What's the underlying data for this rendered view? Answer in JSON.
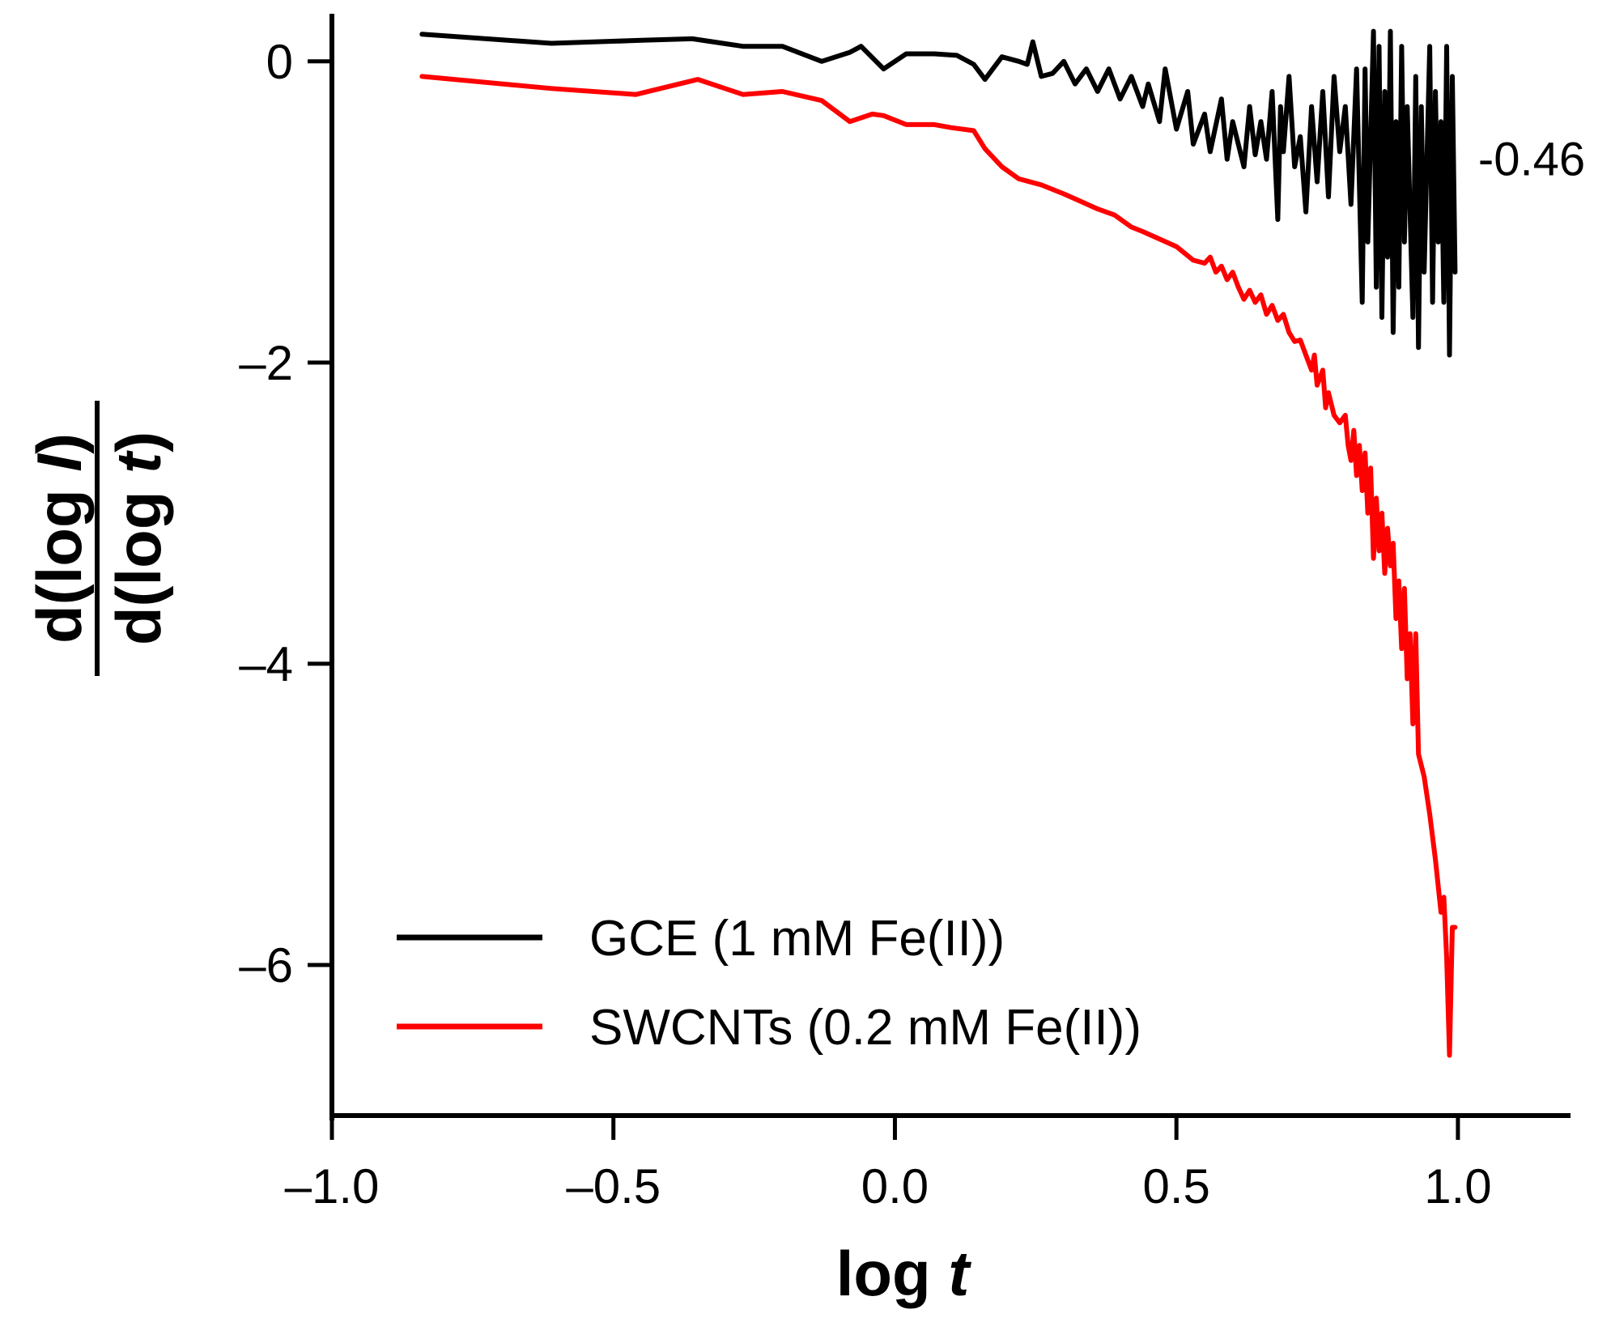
{
  "chart_data": {
    "type": "line",
    "xlabel": "log",
    "xlabel_italic": "t",
    "ylabel_num": "d(log ",
    "ylabel_num_italic": "I",
    "ylabel_num_end": ")",
    "ylabel_den": "d(log ",
    "ylabel_den_italic": "t",
    "ylabel_den_end": ")",
    "xlim": [
      -1.0,
      1.2
    ],
    "ylim": [
      -7.0,
      0.3
    ],
    "xticks": [
      -1.0,
      -0.5,
      0.0,
      0.5,
      1.0
    ],
    "xtick_labels": [
      "–1.0",
      "–0.5",
      "0.0",
      "0.5",
      "1.0"
    ],
    "yticks": [
      0,
      -2,
      -4,
      -6
    ],
    "ytick_labels": [
      "0",
      "–2",
      "–4",
      "–6"
    ],
    "grid": false,
    "legend_position": "bottom-left",
    "annotation": {
      "text": "-0.46",
      "x": 1.0,
      "y": -0.65
    },
    "series": [
      {
        "name": "GCE (1 mM Fe(II))",
        "color": "#000000",
        "points": [
          [
            -0.84,
            0.18
          ],
          [
            -0.61,
            0.12
          ],
          [
            -0.45,
            0.14
          ],
          [
            -0.36,
            0.15
          ],
          [
            -0.27,
            0.1
          ],
          [
            -0.2,
            0.1
          ],
          [
            -0.13,
            0.0
          ],
          [
            -0.08,
            0.06
          ],
          [
            -0.06,
            0.1
          ],
          [
            -0.02,
            -0.05
          ],
          [
            0.02,
            0.05
          ],
          [
            0.07,
            0.05
          ],
          [
            0.11,
            0.04
          ],
          [
            0.14,
            -0.02
          ],
          [
            0.16,
            -0.12
          ],
          [
            0.19,
            0.03
          ],
          [
            0.22,
            0.0
          ],
          [
            0.235,
            -0.02
          ],
          [
            0.245,
            0.13
          ],
          [
            0.26,
            -0.1
          ],
          [
            0.28,
            -0.08
          ],
          [
            0.3,
            0.0
          ],
          [
            0.32,
            -0.15
          ],
          [
            0.34,
            -0.05
          ],
          [
            0.36,
            -0.2
          ],
          [
            0.38,
            -0.05
          ],
          [
            0.4,
            -0.25
          ],
          [
            0.42,
            -0.1
          ],
          [
            0.44,
            -0.3
          ],
          [
            0.45,
            -0.15
          ],
          [
            0.47,
            -0.4
          ],
          [
            0.48,
            -0.05
          ],
          [
            0.5,
            -0.45
          ],
          [
            0.52,
            -0.2
          ],
          [
            0.53,
            -0.55
          ],
          [
            0.55,
            -0.35
          ],
          [
            0.56,
            -0.6
          ],
          [
            0.58,
            -0.25
          ],
          [
            0.59,
            -0.65
          ],
          [
            0.6,
            -0.4
          ],
          [
            0.62,
            -0.7
          ],
          [
            0.63,
            -0.3
          ],
          [
            0.64,
            -0.62
          ],
          [
            0.65,
            -0.4
          ],
          [
            0.66,
            -0.65
          ],
          [
            0.67,
            -0.2
          ],
          [
            0.68,
            -1.05
          ],
          [
            0.685,
            -0.3
          ],
          [
            0.69,
            -0.6
          ],
          [
            0.7,
            -0.1
          ],
          [
            0.71,
            -0.7
          ],
          [
            0.72,
            -0.5
          ],
          [
            0.73,
            -1.0
          ],
          [
            0.74,
            -0.3
          ],
          [
            0.75,
            -0.8
          ],
          [
            0.76,
            -0.2
          ],
          [
            0.77,
            -0.9
          ],
          [
            0.78,
            -0.1
          ],
          [
            0.79,
            -0.6
          ],
          [
            0.8,
            -0.3
          ],
          [
            0.81,
            -0.95
          ],
          [
            0.82,
            -0.05
          ],
          [
            0.83,
            -1.6
          ],
          [
            0.835,
            -0.05
          ],
          [
            0.84,
            -1.2
          ],
          [
            0.85,
            0.2
          ],
          [
            0.855,
            -1.5
          ],
          [
            0.86,
            0.1
          ],
          [
            0.865,
            -1.7
          ],
          [
            0.87,
            -0.2
          ],
          [
            0.875,
            -1.3
          ],
          [
            0.88,
            0.2
          ],
          [
            0.885,
            -1.8
          ],
          [
            0.89,
            -0.4
          ],
          [
            0.895,
            -1.5
          ],
          [
            0.9,
            0.1
          ],
          [
            0.905,
            -1.2
          ],
          [
            0.91,
            -0.3
          ],
          [
            0.92,
            -1.7
          ],
          [
            0.925,
            -0.1
          ],
          [
            0.93,
            -1.9
          ],
          [
            0.935,
            -0.3
          ],
          [
            0.94,
            -1.4
          ],
          [
            0.95,
            0.1
          ],
          [
            0.955,
            -1.6
          ],
          [
            0.96,
            -0.2
          ],
          [
            0.965,
            -1.2
          ],
          [
            0.97,
            -0.4
          ],
          [
            0.975,
            -1.6
          ],
          [
            0.98,
            0.1
          ],
          [
            0.985,
            -1.95
          ],
          [
            0.99,
            -0.1
          ],
          [
            0.995,
            -1.4
          ]
        ]
      },
      {
        "name": "SWCNTs (0.2 mM Fe(II))",
        "color": "#ff0000",
        "points": [
          [
            -0.84,
            -0.1
          ],
          [
            -0.61,
            -0.18
          ],
          [
            -0.46,
            -0.22
          ],
          [
            -0.35,
            -0.12
          ],
          [
            -0.27,
            -0.22
          ],
          [
            -0.2,
            -0.2
          ],
          [
            -0.13,
            -0.26
          ],
          [
            -0.08,
            -0.4
          ],
          [
            -0.04,
            -0.35
          ],
          [
            -0.02,
            -0.36
          ],
          [
            0.02,
            -0.42
          ],
          [
            0.07,
            -0.42
          ],
          [
            0.1,
            -0.44
          ],
          [
            0.14,
            -0.46
          ],
          [
            0.16,
            -0.58
          ],
          [
            0.19,
            -0.7
          ],
          [
            0.22,
            -0.78
          ],
          [
            0.26,
            -0.82
          ],
          [
            0.3,
            -0.88
          ],
          [
            0.33,
            -0.93
          ],
          [
            0.36,
            -0.98
          ],
          [
            0.39,
            -1.02
          ],
          [
            0.42,
            -1.1
          ],
          [
            0.44,
            -1.13
          ],
          [
            0.47,
            -1.18
          ],
          [
            0.5,
            -1.23
          ],
          [
            0.53,
            -1.32
          ],
          [
            0.55,
            -1.34
          ],
          [
            0.56,
            -1.3
          ],
          [
            0.57,
            -1.4
          ],
          [
            0.58,
            -1.36
          ],
          [
            0.59,
            -1.45
          ],
          [
            0.6,
            -1.4
          ],
          [
            0.61,
            -1.5
          ],
          [
            0.62,
            -1.58
          ],
          [
            0.63,
            -1.52
          ],
          [
            0.64,
            -1.6
          ],
          [
            0.65,
            -1.55
          ],
          [
            0.66,
            -1.68
          ],
          [
            0.67,
            -1.62
          ],
          [
            0.68,
            -1.72
          ],
          [
            0.69,
            -1.68
          ],
          [
            0.7,
            -1.8
          ],
          [
            0.71,
            -1.86
          ],
          [
            0.72,
            -1.85
          ],
          [
            0.73,
            -1.95
          ],
          [
            0.74,
            -2.05
          ],
          [
            0.745,
            -1.95
          ],
          [
            0.75,
            -2.15
          ],
          [
            0.76,
            -2.05
          ],
          [
            0.765,
            -2.3
          ],
          [
            0.77,
            -2.2
          ],
          [
            0.78,
            -2.35
          ],
          [
            0.79,
            -2.4
          ],
          [
            0.8,
            -2.35
          ],
          [
            0.805,
            -2.55
          ],
          [
            0.81,
            -2.65
          ],
          [
            0.815,
            -2.45
          ],
          [
            0.82,
            -2.75
          ],
          [
            0.825,
            -2.55
          ],
          [
            0.83,
            -2.85
          ],
          [
            0.835,
            -2.6
          ],
          [
            0.84,
            -3.0
          ],
          [
            0.845,
            -2.7
          ],
          [
            0.85,
            -3.3
          ],
          [
            0.855,
            -2.9
          ],
          [
            0.86,
            -3.25
          ],
          [
            0.865,
            -3.0
          ],
          [
            0.87,
            -3.4
          ],
          [
            0.875,
            -3.1
          ],
          [
            0.88,
            -3.35
          ],
          [
            0.885,
            -3.2
          ],
          [
            0.89,
            -3.7
          ],
          [
            0.895,
            -3.45
          ],
          [
            0.9,
            -3.9
          ],
          [
            0.905,
            -3.5
          ],
          [
            0.91,
            -4.1
          ],
          [
            0.915,
            -3.8
          ],
          [
            0.92,
            -4.4
          ],
          [
            0.925,
            -3.8
          ],
          [
            0.93,
            -4.6
          ],
          [
            0.94,
            -4.75
          ],
          [
            0.95,
            -5.0
          ],
          [
            0.96,
            -5.3
          ],
          [
            0.97,
            -5.65
          ],
          [
            0.975,
            -5.55
          ],
          [
            0.98,
            -5.95
          ],
          [
            0.985,
            -6.6
          ],
          [
            0.99,
            -5.75
          ],
          [
            0.995,
            -5.75
          ]
        ]
      }
    ]
  }
}
